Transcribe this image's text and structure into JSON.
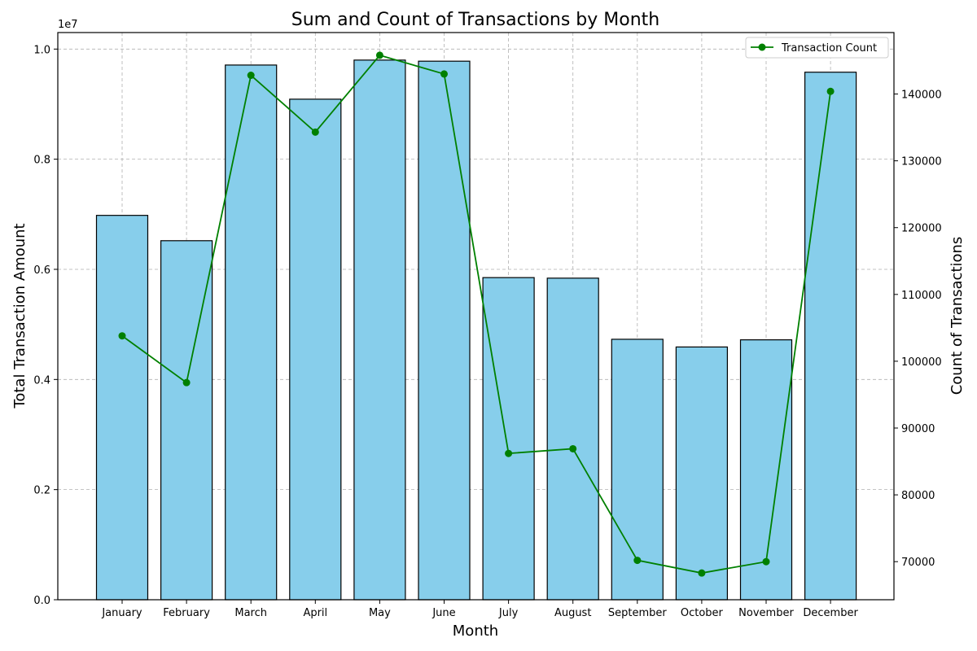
{
  "chart_data": {
    "type": "bar+line",
    "title": "Sum and Count of Transactions by Month",
    "xlabel": "Month",
    "ylabel": "Total Transaction Amount",
    "y2label": "Count of Transactions",
    "y_offset_label": "1e7",
    "categories": [
      "January",
      "February",
      "March",
      "April",
      "May",
      "June",
      "July",
      "August",
      "September",
      "October",
      "November",
      "December"
    ],
    "series": [
      {
        "kind": "bar",
        "axis": "left",
        "color": "#87ceeb",
        "values": [
          6980000,
          6520000,
          9710000,
          9090000,
          9800000,
          9780000,
          5850000,
          5840000,
          4730000,
          4590000,
          4720000,
          9580000
        ]
      },
      {
        "kind": "line",
        "axis": "right",
        "name": "Transaction Count",
        "color": "#008000",
        "values": [
          103800,
          96800,
          142800,
          134300,
          145800,
          143000,
          86200,
          86900,
          70200,
          68300,
          70000,
          140400
        ]
      }
    ],
    "ylim": [
      0,
      10300000
    ],
    "y_ticks": [
      0,
      2000000,
      4000000,
      6000000,
      8000000,
      10000000
    ],
    "y_tick_labels": [
      "0.0",
      "0.2",
      "0.4",
      "0.6",
      "0.8",
      "1.0"
    ],
    "y2lim": [
      64300,
      149200
    ],
    "y2_ticks": [
      70000,
      80000,
      90000,
      100000,
      110000,
      120000,
      130000,
      140000
    ],
    "y2_tick_labels": [
      "70000",
      "80000",
      "90000",
      "100000",
      "110000",
      "120000",
      "130000",
      "140000"
    ],
    "grid": true,
    "legend": "top-right"
  }
}
